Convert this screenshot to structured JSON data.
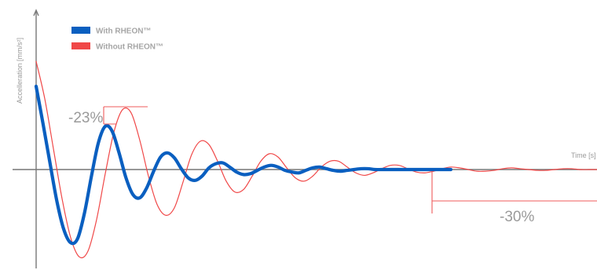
{
  "chart_data": {
    "type": "line",
    "xlabel": "Time [s]",
    "ylabel": "Accelleration [mm/s²]",
    "series": [
      {
        "name": "With RHEON™",
        "color": "#0a5fc0",
        "x": [
          0,
          0.02,
          0.04,
          0.06,
          0.08,
          0.1,
          0.12,
          0.14,
          0.16,
          0.18,
          0.2,
          0.22,
          0.24,
          0.26,
          0.28,
          0.3,
          0.32,
          0.34,
          0.36,
          0.38,
          0.4,
          0.42,
          0.44,
          0.46,
          0.48,
          0.5,
          0.52,
          0.54,
          0.56,
          0.58,
          0.6,
          0.62,
          0.64,
          0.66,
          0.68,
          0.7,
          0.72,
          0.74,
          0.76,
          0.78,
          0.8,
          0.82,
          0.84,
          0.86,
          0.88,
          0.9,
          0.92,
          0.94,
          0.96,
          0.98,
          1.0,
          1.02,
          1.04,
          1.06,
          1.08,
          1.1,
          1.12,
          1.14,
          1.16,
          1.18,
          1.2
        ],
        "y": [
          1.0,
          0.55,
          0.08,
          -0.38,
          -0.72,
          -0.88,
          -0.83,
          -0.52,
          -0.08,
          0.32,
          0.52,
          0.46,
          0.2,
          -0.1,
          -0.3,
          -0.34,
          -0.22,
          -0.02,
          0.15,
          0.2,
          0.14,
          0.01,
          -0.1,
          -0.13,
          -0.08,
          0.02,
          0.07,
          0.08,
          0.03,
          -0.03,
          -0.06,
          -0.05,
          -0.01,
          0.03,
          0.05,
          0.03,
          -0.01,
          -0.03,
          -0.04,
          -0.01,
          0.02,
          0.03,
          0.01,
          -0.01,
          -0.02,
          -0.01,
          0.0,
          0.01,
          0.01,
          0.0,
          0.0,
          0.0,
          0.0,
          0.0,
          0.0,
          0.0,
          0.0,
          0.0,
          0.0,
          0.0,
          0.0
        ]
      },
      {
        "name": "Without RHEON™",
        "color": "#f04848",
        "x": [
          0,
          0.025,
          0.05,
          0.075,
          0.1,
          0.125,
          0.15,
          0.175,
          0.2,
          0.225,
          0.25,
          0.275,
          0.3,
          0.325,
          0.35,
          0.375,
          0.4,
          0.425,
          0.45,
          0.475,
          0.5,
          0.525,
          0.55,
          0.575,
          0.6,
          0.625,
          0.65,
          0.675,
          0.7,
          0.725,
          0.75,
          0.775,
          0.8,
          0.825,
          0.85,
          0.875,
          0.9,
          0.925,
          0.95,
          0.975,
          1.0,
          1.025,
          1.05,
          1.075,
          1.1,
          1.125,
          1.15,
          1.175,
          1.2,
          1.225,
          1.25,
          1.275,
          1.3,
          1.325,
          1.35,
          1.375,
          1.4,
          1.425,
          1.45,
          1.475,
          1.5,
          1.525,
          1.55,
          1.575,
          1.6,
          1.625,
          1.65
        ],
        "y": [
          1.3,
          0.85,
          0.25,
          -0.35,
          -0.82,
          -1.05,
          -0.98,
          -0.6,
          -0.05,
          0.45,
          0.72,
          0.68,
          0.35,
          -0.08,
          -0.42,
          -0.55,
          -0.46,
          -0.15,
          0.18,
          0.34,
          0.3,
          0.1,
          -0.14,
          -0.27,
          -0.24,
          -0.08,
          0.1,
          0.19,
          0.15,
          0.02,
          -0.1,
          -0.14,
          -0.08,
          0.03,
          0.1,
          0.1,
          0.03,
          -0.04,
          -0.07,
          -0.04,
          0.01,
          0.05,
          0.05,
          0.01,
          -0.03,
          -0.04,
          -0.02,
          0.01,
          0.03,
          0.02,
          0.0,
          -0.02,
          -0.02,
          -0.01,
          0.01,
          0.02,
          0.01,
          0.0,
          -0.01,
          -0.01,
          0.0,
          0.01,
          0.01,
          0.0,
          0.0,
          0.0,
          0.0
        ]
      }
    ],
    "annotations": [
      "-23%",
      "-30%"
    ],
    "legend_position": "top-left",
    "grid": false
  }
}
